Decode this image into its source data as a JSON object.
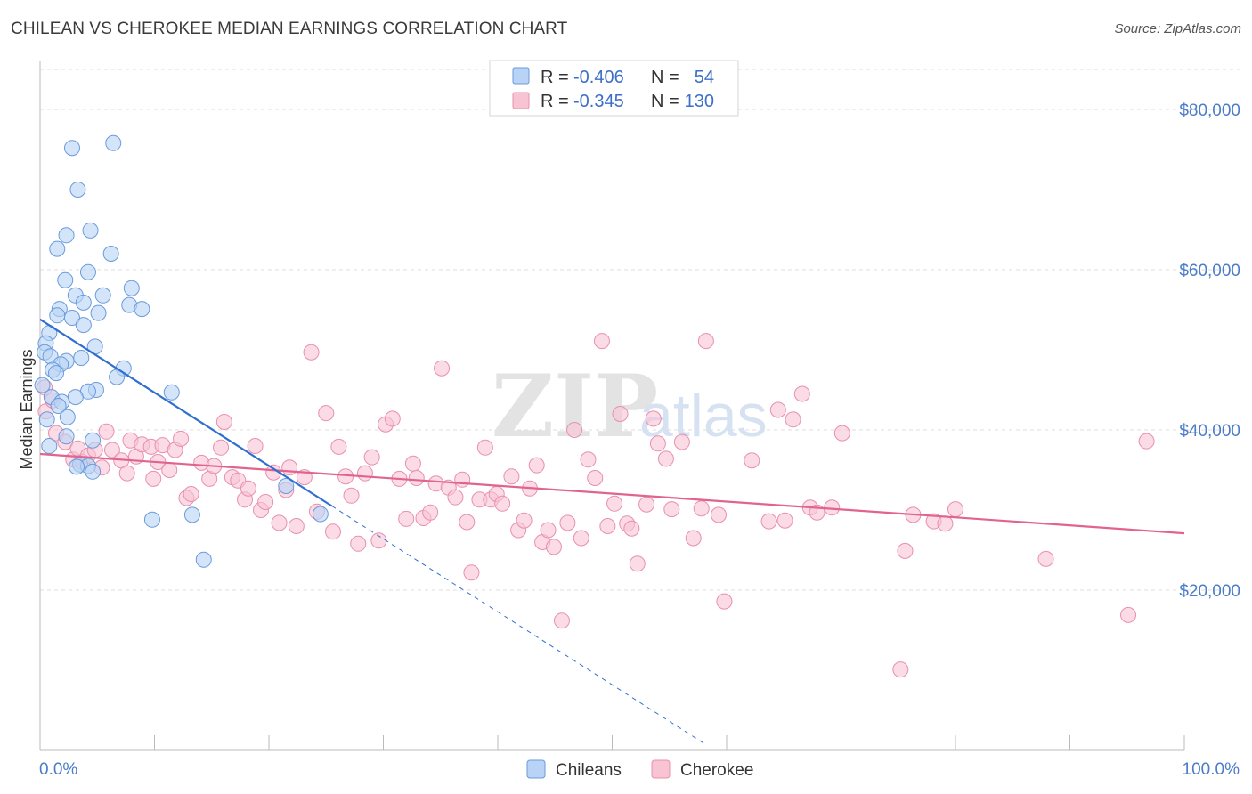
{
  "title": "CHILEAN VS CHEROKEE MEDIAN EARNINGS CORRELATION CHART",
  "source": "Source: ZipAtlas.com",
  "watermark": {
    "zip": "ZIP",
    "atlas": "atlas"
  },
  "colors": {
    "chileans_fill": "#b8d3f5",
    "chileans_stroke": "#6a9bdc",
    "chileans_line": "#2f6fd0",
    "cherokee_fill": "#f8c3d3",
    "cherokee_stroke": "#e990ad",
    "cherokee_line": "#e0648e",
    "tick_text": "#4a7cc8",
    "grid": "#dcdcdc"
  },
  "legend": {
    "rows": [
      {
        "r_label": "R =",
        "r_value": "-0.406",
        "n_label": "N =",
        "n_value": "54"
      },
      {
        "r_label": "R =",
        "r_value": "-0.345",
        "n_label": "N =",
        "n_value": "130"
      }
    ]
  },
  "chart_data": {
    "type": "scatter",
    "title": "CHILEAN VS CHEROKEE MEDIAN EARNINGS CORRELATION CHART",
    "xlabel": "",
    "ylabel": "Median Earnings",
    "xlim": [
      0,
      100
    ],
    "ylim": [
      0,
      85000
    ],
    "x_tick_labels": [
      "0.0%",
      "100.0%"
    ],
    "y_ticks": [
      20000,
      40000,
      60000,
      80000
    ],
    "y_tick_labels": [
      "$20,000",
      "$40,000",
      "$60,000",
      "$80,000"
    ],
    "grid": true,
    "legend_position": "top-center",
    "series": [
      {
        "name": "Chileans",
        "r": -0.406,
        "n": 54,
        "trend": {
          "x1": 0,
          "y1": 53800,
          "x2": 25.5,
          "y2": 30500,
          "dashed_to_x": 58,
          "dashed_to_y": 900
        },
        "points": [
          [
            6.4,
            75800
          ],
          [
            2.8,
            75200
          ],
          [
            3.3,
            70000
          ],
          [
            2.3,
            64300
          ],
          [
            4.4,
            64900
          ],
          [
            1.5,
            62600
          ],
          [
            6.2,
            62000
          ],
          [
            4.2,
            59700
          ],
          [
            2.2,
            58700
          ],
          [
            3.1,
            56800
          ],
          [
            5.5,
            56800
          ],
          [
            8.0,
            57700
          ],
          [
            3.8,
            55900
          ],
          [
            1.7,
            55100
          ],
          [
            7.8,
            55600
          ],
          [
            8.9,
            55100
          ],
          [
            5.1,
            54600
          ],
          [
            1.5,
            54300
          ],
          [
            2.8,
            54000
          ],
          [
            3.8,
            53100
          ],
          [
            0.8,
            52100
          ],
          [
            0.5,
            50800
          ],
          [
            4.8,
            50400
          ],
          [
            0.4,
            49700
          ],
          [
            0.9,
            49200
          ],
          [
            3.6,
            49000
          ],
          [
            2.3,
            48600
          ],
          [
            1.8,
            48200
          ],
          [
            7.3,
            47700
          ],
          [
            1.1,
            47500
          ],
          [
            1.4,
            47100
          ],
          [
            6.7,
            46600
          ],
          [
            0.2,
            45600
          ],
          [
            4.9,
            45000
          ],
          [
            4.2,
            44800
          ],
          [
            11.5,
            44700
          ],
          [
            1.0,
            44100
          ],
          [
            3.1,
            44100
          ],
          [
            1.9,
            43500
          ],
          [
            1.6,
            43000
          ],
          [
            2.4,
            41600
          ],
          [
            0.6,
            41300
          ],
          [
            2.3,
            39200
          ],
          [
            4.6,
            38700
          ],
          [
            0.8,
            38000
          ],
          [
            3.5,
            35700
          ],
          [
            4.2,
            35500
          ],
          [
            3.2,
            35400
          ],
          [
            4.6,
            34800
          ],
          [
            21.5,
            33000
          ],
          [
            24.5,
            29500
          ],
          [
            9.8,
            28800
          ],
          [
            13.3,
            29400
          ],
          [
            14.3,
            23800
          ]
        ]
      },
      {
        "name": "Cherokee",
        "r": -0.345,
        "n": 130,
        "trend": {
          "x1": 0,
          "y1": 37000,
          "x2": 100,
          "y2": 27100
        },
        "points": [
          [
            0.4,
            45300
          ],
          [
            0.5,
            42300
          ],
          [
            1.1,
            43700
          ],
          [
            1.4,
            39600
          ],
          [
            2.2,
            38500
          ],
          [
            2.9,
            36300
          ],
          [
            3.3,
            37700
          ],
          [
            3.7,
            36000
          ],
          [
            4.2,
            36800
          ],
          [
            4.8,
            37500
          ],
          [
            5.4,
            35300
          ],
          [
            5.8,
            39800
          ],
          [
            6.3,
            37500
          ],
          [
            7.1,
            36200
          ],
          [
            7.6,
            34600
          ],
          [
            7.9,
            38700
          ],
          [
            8.4,
            36700
          ],
          [
            8.9,
            38200
          ],
          [
            9.7,
            37900
          ],
          [
            9.9,
            33900
          ],
          [
            10.3,
            36000
          ],
          [
            10.7,
            38100
          ],
          [
            11.3,
            35000
          ],
          [
            11.8,
            37500
          ],
          [
            12.3,
            38900
          ],
          [
            12.8,
            31500
          ],
          [
            13.2,
            32000
          ],
          [
            14.1,
            35900
          ],
          [
            14.8,
            33900
          ],
          [
            15.2,
            35500
          ],
          [
            15.8,
            37800
          ],
          [
            16.1,
            41000
          ],
          [
            16.8,
            34100
          ],
          [
            17.3,
            33700
          ],
          [
            17.9,
            31300
          ],
          [
            18.2,
            32700
          ],
          [
            18.8,
            38000
          ],
          [
            19.3,
            30000
          ],
          [
            19.7,
            31000
          ],
          [
            20.4,
            34700
          ],
          [
            20.9,
            28400
          ],
          [
            21.5,
            32500
          ],
          [
            21.8,
            35300
          ],
          [
            22.4,
            28000
          ],
          [
            23.1,
            34100
          ],
          [
            23.7,
            49700
          ],
          [
            24.2,
            29800
          ],
          [
            25.0,
            42100
          ],
          [
            25.6,
            27300
          ],
          [
            26.1,
            37900
          ],
          [
            26.7,
            34200
          ],
          [
            27.2,
            31800
          ],
          [
            27.8,
            25800
          ],
          [
            28.4,
            34600
          ],
          [
            29.0,
            36600
          ],
          [
            29.6,
            26200
          ],
          [
            30.2,
            40700
          ],
          [
            30.8,
            41400
          ],
          [
            31.4,
            33900
          ],
          [
            32.0,
            28900
          ],
          [
            32.6,
            35800
          ],
          [
            32.9,
            34000
          ],
          [
            33.5,
            29000
          ],
          [
            34.1,
            29700
          ],
          [
            34.6,
            33300
          ],
          [
            35.1,
            47700
          ],
          [
            35.7,
            32800
          ],
          [
            36.3,
            31600
          ],
          [
            36.9,
            33800
          ],
          [
            37.3,
            28500
          ],
          [
            37.7,
            22200
          ],
          [
            38.4,
            31300
          ],
          [
            38.9,
            37800
          ],
          [
            39.4,
            31300
          ],
          [
            39.9,
            32000
          ],
          [
            40.4,
            30800
          ],
          [
            41.2,
            34200
          ],
          [
            41.8,
            27500
          ],
          [
            42.3,
            28700
          ],
          [
            42.8,
            32700
          ],
          [
            43.4,
            35600
          ],
          [
            43.9,
            26000
          ],
          [
            44.4,
            27500
          ],
          [
            44.9,
            25400
          ],
          [
            45.6,
            16200
          ],
          [
            46.1,
            28400
          ],
          [
            46.7,
            40000
          ],
          [
            47.3,
            26500
          ],
          [
            47.9,
            36300
          ],
          [
            48.5,
            34000
          ],
          [
            49.1,
            51100
          ],
          [
            49.6,
            28000
          ],
          [
            50.2,
            30800
          ],
          [
            50.7,
            42000
          ],
          [
            51.3,
            28300
          ],
          [
            51.7,
            27700
          ],
          [
            52.2,
            23300
          ],
          [
            53.0,
            30700
          ],
          [
            53.6,
            41400
          ],
          [
            54.0,
            38300
          ],
          [
            54.7,
            36400
          ],
          [
            55.2,
            30100
          ],
          [
            56.1,
            38500
          ],
          [
            57.1,
            26500
          ],
          [
            57.8,
            30200
          ],
          [
            58.2,
            51100
          ],
          [
            59.3,
            29400
          ],
          [
            59.8,
            18600
          ],
          [
            62.2,
            36200
          ],
          [
            63.7,
            28600
          ],
          [
            64.5,
            42500
          ],
          [
            65.1,
            28700
          ],
          [
            65.8,
            41300
          ],
          [
            66.6,
            44500
          ],
          [
            67.3,
            30300
          ],
          [
            67.9,
            29700
          ],
          [
            69.2,
            30300
          ],
          [
            70.1,
            39600
          ],
          [
            75.2,
            10100
          ],
          [
            75.6,
            24900
          ],
          [
            76.3,
            29400
          ],
          [
            78.1,
            28600
          ],
          [
            79.1,
            28300
          ],
          [
            80.0,
            30100
          ],
          [
            87.9,
            23900
          ],
          [
            95.1,
            16900
          ],
          [
            96.7,
            38600
          ]
        ]
      }
    ]
  }
}
